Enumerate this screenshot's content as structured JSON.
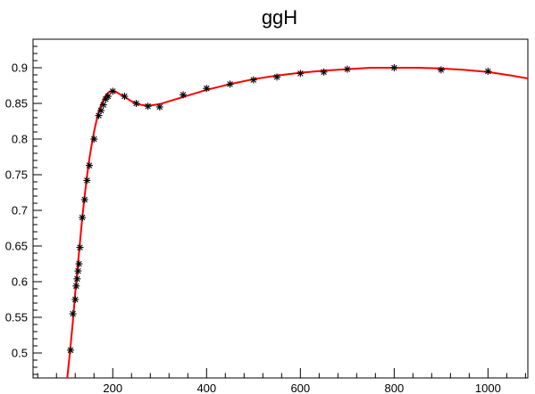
{
  "chart_data": {
    "type": "scatter",
    "title": "ggH",
    "xlabel": "",
    "ylabel": "",
    "xlim": [
      30,
      1085
    ],
    "ylim": [
      0.465,
      0.94
    ],
    "grid": false,
    "x_ticks": [
      200,
      400,
      600,
      800,
      1000
    ],
    "y_ticks": [
      0.5,
      0.55,
      0.6,
      0.65,
      0.7,
      0.75,
      0.8,
      0.85,
      0.9
    ],
    "colors": {
      "fit_line": "#ff0000",
      "markers": "#000000"
    },
    "series": [
      {
        "kind": "points",
        "marker": "star",
        "x": [
          110,
          115,
          120,
          122,
          124,
          126,
          128,
          130,
          135,
          140,
          145,
          150,
          160,
          170,
          175,
          180,
          185,
          190,
          200,
          225,
          250,
          275,
          300,
          350,
          400,
          450,
          500,
          550,
          600,
          650,
          700,
          800,
          900,
          1000
        ],
        "y": [
          0.504,
          0.555,
          0.575,
          0.594,
          0.604,
          0.615,
          0.625,
          0.648,
          0.69,
          0.715,
          0.742,
          0.763,
          0.8,
          0.833,
          0.84,
          0.848,
          0.856,
          0.86,
          0.867,
          0.86,
          0.85,
          0.846,
          0.845,
          0.862,
          0.871,
          0.877,
          0.883,
          0.887,
          0.892,
          0.894,
          0.898,
          0.9,
          0.897,
          0.895
        ]
      },
      {
        "kind": "line",
        "x": [
          103,
          110,
          115,
          120,
          125,
          130,
          135,
          140,
          145,
          150,
          155,
          160,
          165,
          170,
          175,
          180,
          185,
          190,
          195,
          200,
          210,
          220,
          230,
          240,
          250,
          260,
          270,
          280,
          290,
          300,
          325,
          350,
          400,
          450,
          500,
          550,
          600,
          650,
          700,
          750,
          800,
          850,
          900,
          950,
          1000,
          1050,
          1085
        ],
        "y": [
          0.465,
          0.51,
          0.545,
          0.585,
          0.62,
          0.655,
          0.69,
          0.72,
          0.748,
          0.772,
          0.792,
          0.81,
          0.825,
          0.838,
          0.848,
          0.855,
          0.861,
          0.865,
          0.867,
          0.868,
          0.865,
          0.861,
          0.857,
          0.853,
          0.85,
          0.848,
          0.847,
          0.847,
          0.848,
          0.849,
          0.854,
          0.859,
          0.869,
          0.877,
          0.884,
          0.889,
          0.893,
          0.896,
          0.898,
          0.9,
          0.9,
          0.9,
          0.899,
          0.897,
          0.894,
          0.889,
          0.885
        ]
      }
    ]
  }
}
